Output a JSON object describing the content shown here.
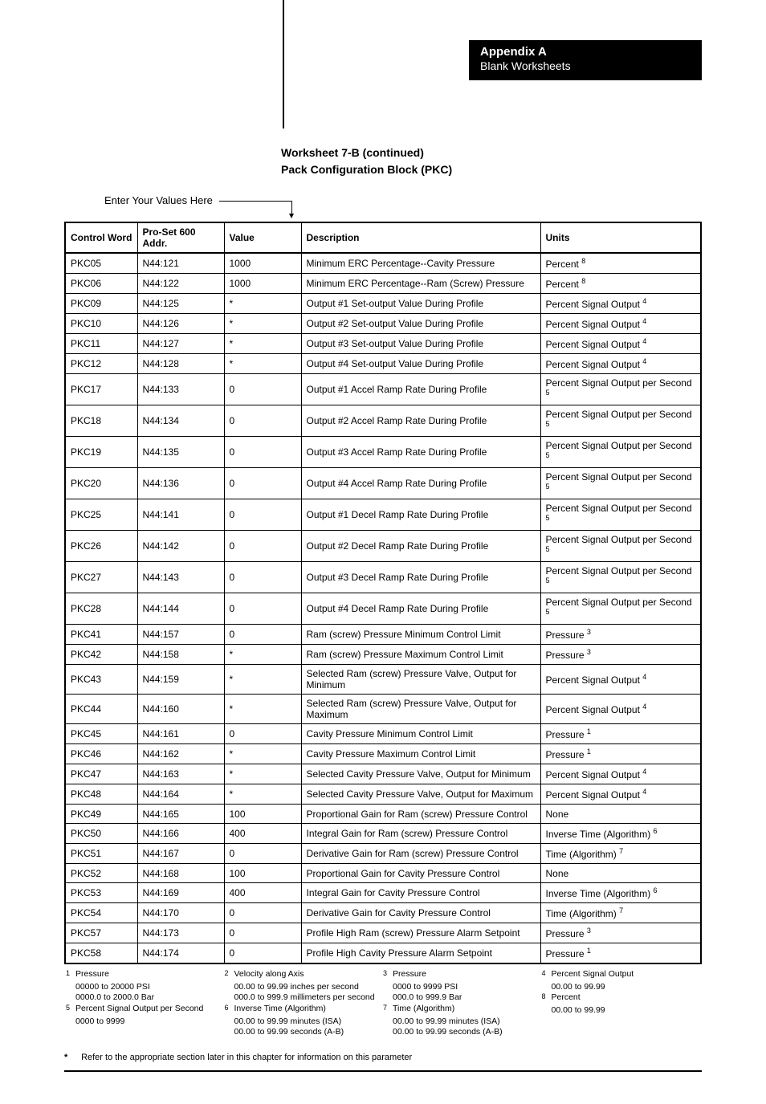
{
  "header": {
    "appendix": "Appendix A",
    "subtitle": "Blank Worksheets"
  },
  "section": {
    "line1": "Worksheet 7-B (continued)",
    "line2": "Pack Configuration Block (PKC)"
  },
  "enter_label": "Enter Your Values Here",
  "columns": {
    "cw": "Control Word",
    "addr": "Pro-Set 600 Addr.",
    "value": "Value",
    "desc": "Description",
    "units": "Units"
  },
  "rows": [
    {
      "cw": "PKC05",
      "addr": "N44:121",
      "value": "1000",
      "desc": "Minimum ERC Percentage--Cavity Pressure",
      "units": "Percent",
      "sup": "8"
    },
    {
      "cw": "PKC06",
      "addr": "N44:122",
      "value": "1000",
      "desc": "Minimum ERC Percentage--Ram (Screw) Pressure",
      "units": "Percent",
      "sup": "8"
    },
    {
      "cw": "PKC09",
      "addr": "N44:125",
      "value": "*",
      "desc": "Output #1 Set-output Value During Profile",
      "units": "Percent Signal Output",
      "sup": "4"
    },
    {
      "cw": "PKC10",
      "addr": "N44:126",
      "value": "*",
      "desc": "Output #2 Set-output Value During Profile",
      "units": "Percent Signal Output",
      "sup": "4"
    },
    {
      "cw": "PKC11",
      "addr": "N44:127",
      "value": "*",
      "desc": "Output #3 Set-output Value During Profile",
      "units": "Percent Signal Output",
      "sup": "4"
    },
    {
      "cw": "PKC12",
      "addr": "N44:128",
      "value": "*",
      "desc": "Output #4 Set-output Value During Profile",
      "units": "Percent Signal Output",
      "sup": "4"
    },
    {
      "cw": "PKC17",
      "addr": "N44:133",
      "value": "0",
      "desc": "Output #1 Accel Ramp Rate During Profile",
      "units": "Percent Signal Output per Second",
      "sup": "5"
    },
    {
      "cw": "PKC18",
      "addr": "N44:134",
      "value": "0",
      "desc": "Output #2 Accel Ramp Rate During Profile",
      "units": "Percent Signal Output per Second",
      "sup": "5"
    },
    {
      "cw": "PKC19",
      "addr": "N44:135",
      "value": "0",
      "desc": "Output #3 Accel Ramp Rate During Profile",
      "units": "Percent Signal Output per Second",
      "sup": "5"
    },
    {
      "cw": "PKC20",
      "addr": "N44:136",
      "value": "0",
      "desc": "Output #4 Accel Ramp Rate During Profile",
      "units": "Percent Signal Output per Second",
      "sup": "5"
    },
    {
      "cw": "PKC25",
      "addr": "N44:141",
      "value": "0",
      "desc": "Output #1 Decel Ramp Rate During Profile",
      "units": "Percent Signal Output per Second",
      "sup": "5"
    },
    {
      "cw": "PKC26",
      "addr": "N44:142",
      "value": "0",
      "desc": "Output #2 Decel Ramp Rate During Profile",
      "units": "Percent Signal Output per Second",
      "sup": "5"
    },
    {
      "cw": "PKC27",
      "addr": "N44:143",
      "value": "0",
      "desc": "Output #3 Decel Ramp Rate During Profile",
      "units": "Percent Signal Output per Second",
      "sup": "5"
    },
    {
      "cw": "PKC28",
      "addr": "N44:144",
      "value": "0",
      "desc": "Output #4 Decel Ramp Rate During Profile",
      "units": "Percent Signal Output per Second",
      "sup": "5"
    },
    {
      "cw": "PKC41",
      "addr": "N44:157",
      "value": "0",
      "desc": "Ram (screw) Pressure Minimum Control Limit",
      "units": "Pressure",
      "sup": "3"
    },
    {
      "cw": "PKC42",
      "addr": "N44:158",
      "value": "*",
      "desc": "Ram (screw) Pressure Maximum Control Limit",
      "units": "Pressure",
      "sup": "3"
    },
    {
      "cw": "PKC43",
      "addr": "N44:159",
      "value": "*",
      "desc": "Selected Ram (screw) Pressure Valve, Output for Minimum",
      "units": "Percent Signal Output",
      "sup": "4"
    },
    {
      "cw": "PKC44",
      "addr": "N44:160",
      "value": "*",
      "desc": "Selected Ram (screw) Pressure Valve, Output for Maximum",
      "units": "Percent Signal Output",
      "sup": "4"
    },
    {
      "cw": "PKC45",
      "addr": "N44:161",
      "value": "0",
      "desc": "Cavity Pressure Minimum Control Limit",
      "units": "Pressure",
      "sup": "1"
    },
    {
      "cw": "PKC46",
      "addr": "N44:162",
      "value": "*",
      "desc": "Cavity Pressure Maximum Control Limit",
      "units": "Pressure",
      "sup": "1"
    },
    {
      "cw": "PKC47",
      "addr": "N44:163",
      "value": "*",
      "desc": "Selected Cavity Pressure Valve, Output for Minimum",
      "units": "Percent Signal Output",
      "sup": "4"
    },
    {
      "cw": "PKC48",
      "addr": "N44:164",
      "value": "*",
      "desc": "Selected Cavity Pressure Valve, Output for Maximum",
      "units": "Percent Signal Output",
      "sup": "4"
    },
    {
      "cw": "PKC49",
      "addr": "N44:165",
      "value": "100",
      "desc": "Proportional Gain for Ram (screw) Pressure Control",
      "units": "None",
      "sup": ""
    },
    {
      "cw": "PKC50",
      "addr": "N44:166",
      "value": "400",
      "desc": "Integral Gain for Ram (screw) Pressure Control",
      "units": "Inverse Time (Algorithm)",
      "sup": "6"
    },
    {
      "cw": "PKC51",
      "addr": "N44:167",
      "value": "0",
      "desc": "Derivative Gain for Ram (screw) Pressure Control",
      "units": "Time (Algorithm)",
      "sup": "7"
    },
    {
      "cw": "PKC52",
      "addr": "N44:168",
      "value": "100",
      "desc": "Proportional Gain for Cavity Pressure Control",
      "units": "None",
      "sup": ""
    },
    {
      "cw": "PKC53",
      "addr": "N44:169",
      "value": "400",
      "desc": "Integral Gain for Cavity Pressure Control",
      "units": "Inverse Time (Algorithm)",
      "sup": "6"
    },
    {
      "cw": "PKC54",
      "addr": "N44:170",
      "value": "0",
      "desc": "Derivative Gain for Cavity Pressure Control",
      "units": "Time (Algorithm)",
      "sup": "7"
    },
    {
      "cw": "PKC57",
      "addr": "N44:173",
      "value": "0",
      "desc": "Profile High Ram (screw) Pressure Alarm Setpoint",
      "units": "Pressure",
      "sup": "3"
    },
    {
      "cw": "PKC58",
      "addr": "N44:174",
      "value": "0",
      "desc": "Profile High Cavity Pressure Alarm Setpoint",
      "units": "Pressure",
      "sup": "1"
    }
  ],
  "footnotes": {
    "col1": [
      {
        "num": "1",
        "title": "Pressure",
        "lines": [
          "00000 to 20000 PSI",
          "0000.0 to 2000.0 Bar"
        ]
      },
      {
        "num": "5",
        "title": "Percent Signal Output per Second",
        "lines": [
          "0000 to 9999"
        ]
      }
    ],
    "col2": [
      {
        "num": "2",
        "title": "Velocity along Axis",
        "lines": [
          "00.00 to 99.99 inches per  second",
          "000.0 to 999.9 millimeters per second"
        ]
      },
      {
        "num": "6",
        "title": "Inverse Time (Algorithm)",
        "lines": [
          "00.00 to 99.99 minutes  (ISA)",
          "00.00 to 99.99 seconds  (A-B)"
        ]
      }
    ],
    "col3": [
      {
        "num": "3",
        "title": "Pressure",
        "lines": [
          "0000 to 9999 PSI",
          "000.0 to 999.9 Bar"
        ]
      },
      {
        "num": "7",
        "title": "Time (Algorithm)",
        "lines": [
          "00.00 to 99.99 minutes (ISA)",
          "00.00 to 99.99 seconds  (A-B)"
        ]
      }
    ],
    "col4": [
      {
        "num": "4",
        "title": "Percent Signal Output",
        "lines": [
          "00.00 to 99.99"
        ]
      },
      {
        "num": "8",
        "title": "Percent",
        "lines": [
          "00.00 to 99.99"
        ]
      }
    ]
  },
  "asterisk_note": "Refer to the appropriate section later in this chapter for information on this parameter",
  "asterisk_symbol": "*"
}
